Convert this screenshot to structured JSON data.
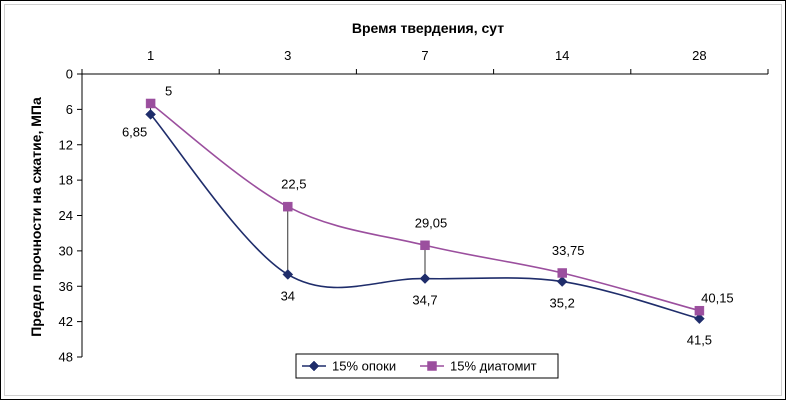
{
  "chart_data": {
    "type": "line",
    "xlabel": "Время твердения, сут",
    "ylabel": "Предел прочности на сжатие, МПа",
    "categories": [
      "1",
      "3",
      "7",
      "14",
      "28"
    ],
    "y_axis": {
      "ylim": [
        0,
        48
      ],
      "ticks": [
        0,
        6,
        12,
        18,
        24,
        30,
        36,
        42,
        48
      ],
      "inverted": true
    },
    "x_axis_position": "top",
    "grid": false,
    "legend_position": "bottom",
    "series": [
      {
        "name": "15% опоки",
        "color": "#1f2d6b",
        "marker": "diamond",
        "smooth": true,
        "values": [
          6.85,
          34,
          34.7,
          35.2,
          41.5
        ],
        "labels": [
          "6,85",
          "34",
          "34,7",
          "35,2",
          "41,5"
        ],
        "label_side": [
          "below-left",
          "below",
          "below",
          "below",
          "below"
        ]
      },
      {
        "name": "15% диатомит",
        "color": "#9b4f9e",
        "marker": "square",
        "smooth": true,
        "values": [
          5,
          22.5,
          29.05,
          33.75,
          40.15
        ],
        "labels": [
          "5",
          "22,5",
          "29,05",
          "33,75",
          "40,15"
        ],
        "label_side": [
          "above-right",
          "above",
          "above",
          "above",
          "above-right"
        ]
      }
    ],
    "drop_lines": true
  }
}
